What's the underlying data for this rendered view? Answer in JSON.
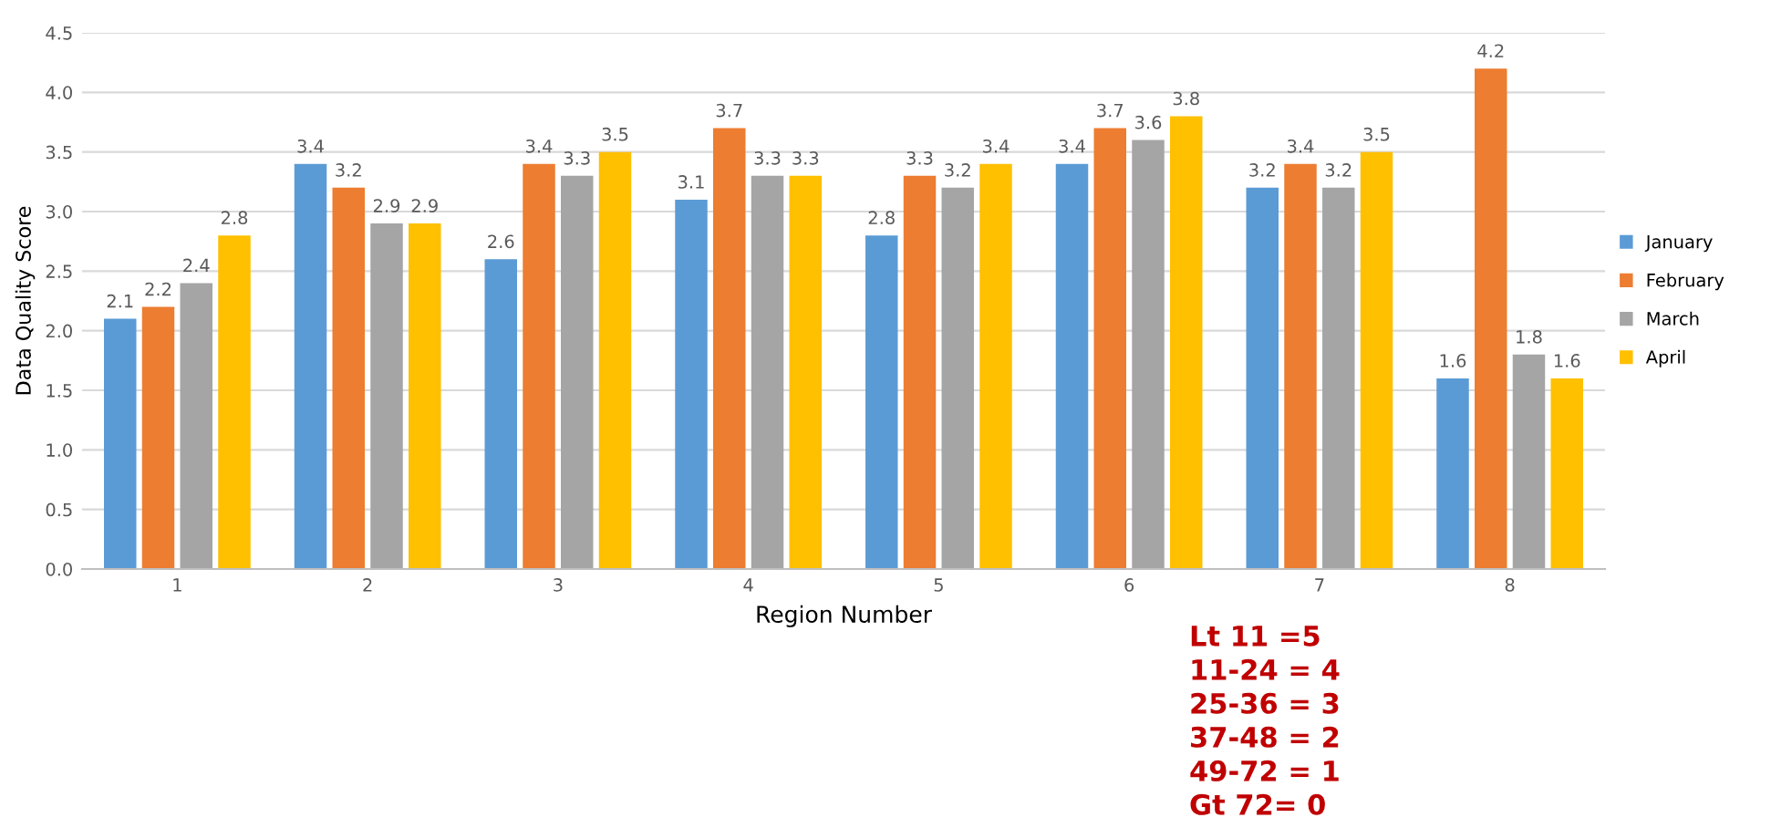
{
  "chart_data": {
    "type": "bar",
    "xlabel": "Region Number",
    "ylabel": "Data Quality Score",
    "categories": [
      "1",
      "2",
      "3",
      "4",
      "5",
      "6",
      "7",
      "8"
    ],
    "series": [
      {
        "name": "January",
        "color": "#5b9bd5",
        "values": [
          2.1,
          3.4,
          2.6,
          3.1,
          2.8,
          3.4,
          3.2,
          1.6
        ]
      },
      {
        "name": "February",
        "color": "#ed7d31",
        "values": [
          2.2,
          3.2,
          3.4,
          3.7,
          3.3,
          3.7,
          3.4,
          4.2
        ]
      },
      {
        "name": "March",
        "color": "#a5a5a5",
        "values": [
          2.4,
          2.9,
          3.3,
          3.3,
          3.2,
          3.6,
          3.2,
          1.8
        ]
      },
      {
        "name": "April",
        "color": "#ffc000",
        "values": [
          2.8,
          2.9,
          3.5,
          3.3,
          3.4,
          3.8,
          3.5,
          1.6
        ]
      }
    ],
    "ylim": [
      0,
      4.5
    ],
    "yticks": [
      {
        "value": 0,
        "label": "0.0"
      },
      0.5,
      {
        "value": 1,
        "label": "1.0"
      },
      1.5,
      {
        "value": 2,
        "label": "2.0"
      },
      2.5,
      {
        "value": 3,
        "label": "3.0"
      },
      3.5,
      {
        "value": 4,
        "label": "4.0"
      },
      4.5
    ],
    "grid": "y",
    "legend": "right",
    "data_labels": true,
    "annotations": [
      "Lt 11 =5",
      "11-24 = 4",
      "25-36 = 3",
      "37-48 = 2",
      "49-72 = 1",
      "Gt 72= 0"
    ]
  }
}
